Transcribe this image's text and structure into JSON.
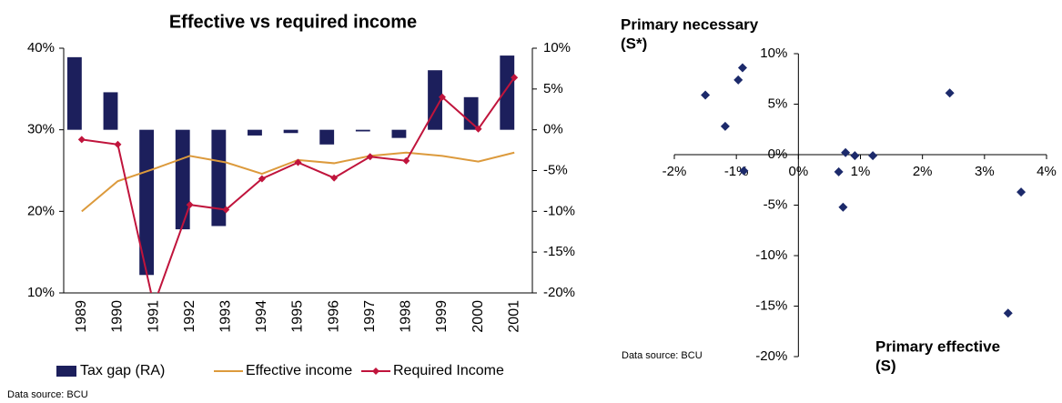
{
  "chart_data": [
    {
      "type": "combo",
      "title": "Effective vs required income",
      "categories": [
        "1989",
        "1990",
        "1991",
        "1992",
        "1993",
        "1994",
        "1995",
        "1996",
        "1997",
        "1998",
        "1999",
        "2000",
        "2001"
      ],
      "series": [
        {
          "name": "Tax gap (RA)",
          "kind": "bar",
          "axis": "y2",
          "color": "#1c1f5c",
          "values": [
            8.9,
            4.6,
            -17.8,
            -12.2,
            -11.8,
            -0.7,
            -0.4,
            -1.8,
            -0.2,
            -1.0,
            7.3,
            4.0,
            9.1
          ]
        },
        {
          "name": "Effective income",
          "kind": "line",
          "color": "#dc9a3c",
          "values": [
            20.0,
            23.7,
            25.2,
            26.8,
            26.0,
            24.6,
            26.3,
            25.9,
            26.8,
            27.2,
            26.8,
            26.1,
            27.2
          ]
        },
        {
          "name": "Required Income",
          "kind": "line",
          "marker": "diamond",
          "color": "#c0143c",
          "values": [
            28.8,
            28.2,
            8.5,
            20.8,
            20.2,
            24.0,
            26.0,
            24.1,
            26.7,
            26.2,
            34.0,
            30.1,
            36.4
          ]
        }
      ],
      "ylim": [
        10,
        40
      ],
      "yticks": [
        {
          "value": 10,
          "label": "10%"
        },
        {
          "value": 20,
          "label": "20%"
        },
        {
          "value": 30,
          "label": "30%"
        },
        {
          "value": 40,
          "label": "40%"
        }
      ],
      "y2lim": [
        -20,
        10
      ],
      "y2ticks": [
        {
          "value": -20,
          "label": "-20%"
        },
        {
          "value": -15,
          "label": "-15%"
        },
        {
          "value": -10,
          "label": "-10%"
        },
        {
          "value": -5,
          "label": "-5%"
        },
        {
          "value": 0,
          "label": "0%"
        },
        {
          "value": 5,
          "label": "5%"
        },
        {
          "value": 10,
          "label": "10%"
        }
      ],
      "legend": "bottom",
      "source": "Data source: BCU"
    },
    {
      "type": "scatter",
      "color": "#1c2a6b",
      "y_label": [
        "Primary necessary",
        "(S*)"
      ],
      "x_label": [
        "Primary effective",
        "(S)"
      ],
      "x": [
        -1.5,
        -1.18,
        -0.97,
        -0.9,
        -0.88,
        0.65,
        0.76,
        0.91,
        1.2,
        0.72,
        2.44,
        3.59,
        3.38
      ],
      "values": [
        5.9,
        2.8,
        7.4,
        8.6,
        -1.6,
        -1.7,
        0.2,
        -0.1,
        -0.1,
        -5.2,
        6.1,
        -3.7,
        -15.7
      ],
      "xlim": [
        -2,
        4
      ],
      "xticks": [
        {
          "value": -2,
          "label": "-2%"
        },
        {
          "value": -1,
          "label": "-1%"
        },
        {
          "value": 0,
          "label": "0%"
        },
        {
          "value": 1,
          "label": "1%"
        },
        {
          "value": 2,
          "label": "2%"
        },
        {
          "value": 3,
          "label": "3%"
        },
        {
          "value": 4,
          "label": "4%"
        }
      ],
      "ylim": [
        -20,
        10
      ],
      "yticks": [
        {
          "value": -20,
          "label": "-20%"
        },
        {
          "value": -15,
          "label": "-15%"
        },
        {
          "value": -10,
          "label": "-10%"
        },
        {
          "value": -5,
          "label": "-5%"
        },
        {
          "value": 0,
          "label": "0%"
        },
        {
          "value": 5,
          "label": "5%"
        },
        {
          "value": 10,
          "label": "10%"
        }
      ],
      "source": "Data source: BCU"
    }
  ]
}
